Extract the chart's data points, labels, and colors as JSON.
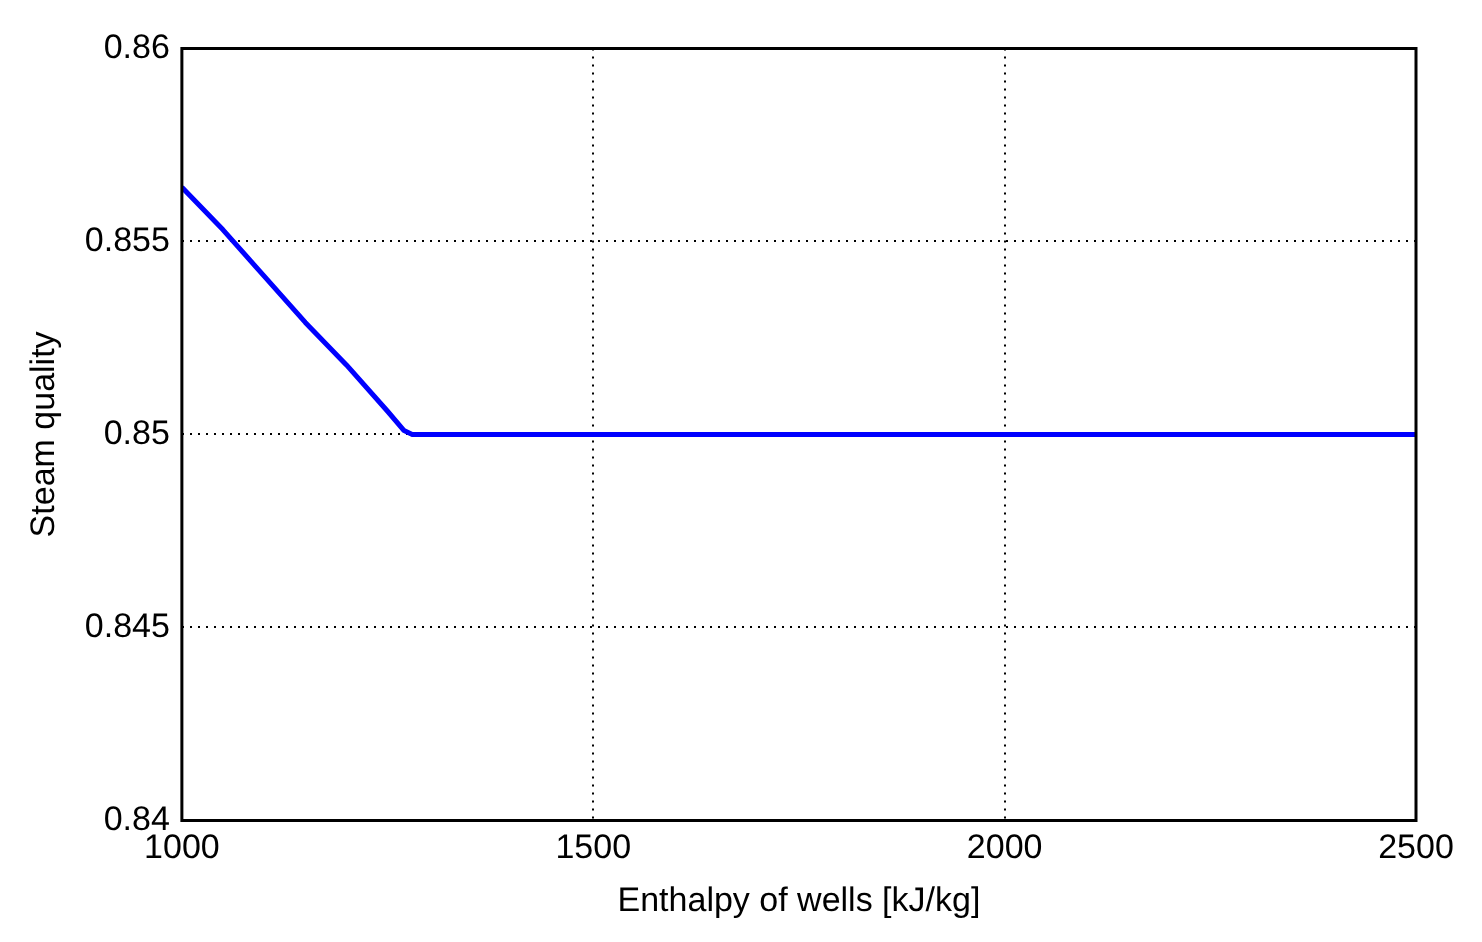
{
  "chart_data": {
    "type": "line",
    "xlabel": "Enthalpy of wells [kJ/kg]",
    "ylabel": "Steam quality",
    "x": [
      1000,
      1050,
      1100,
      1150,
      1200,
      1250,
      1270,
      1280,
      1500,
      2000,
      2500
    ],
    "series": [
      {
        "color": "#0000ff",
        "values": [
          0.8564,
          0.8553,
          0.8541,
          0.8529,
          0.8518,
          0.8506,
          0.8501,
          0.85,
          0.85,
          0.85,
          0.85
        ]
      }
    ],
    "xlim": [
      1000,
      2500
    ],
    "xticks": [
      1000,
      1500,
      2000,
      2500
    ],
    "ylim": [
      0.84,
      0.86
    ],
    "yticks": [
      0.84,
      0.845,
      0.85,
      0.855,
      0.86
    ],
    "grid": true,
    "legend": false,
    "marker": "none",
    "line_style": "solid"
  }
}
